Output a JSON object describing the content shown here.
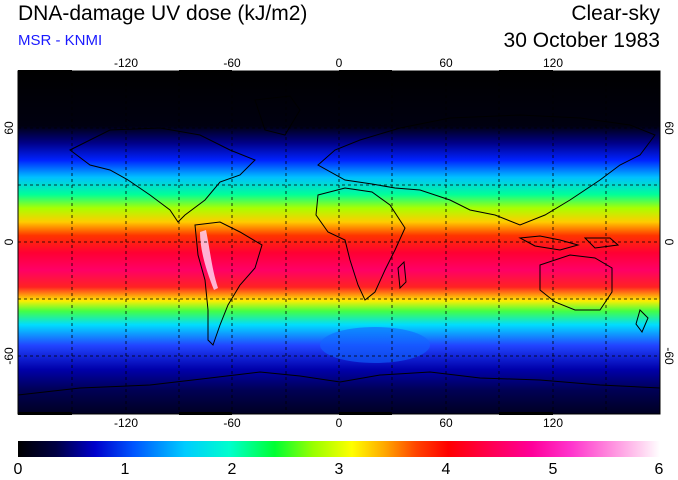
{
  "header": {
    "title": "DNA-damage UV dose (kJ/m2)",
    "subtitle": "MSR - KNMI",
    "condition": "Clear-sky",
    "date": "30 October 1983"
  },
  "colors": {
    "subtitle": "#1a1aff"
  },
  "map": {
    "lon_ticks": [
      "-120",
      "-60",
      "0",
      "60",
      "120"
    ],
    "lat_ticks_left": [
      "60",
      "0",
      "-60"
    ],
    "lat_ticks_right": [
      "60",
      "0",
      "-60"
    ],
    "lon_range": [
      -180,
      180
    ],
    "lat_range": [
      -90,
      90
    ],
    "grid": "dashed, every 30 degrees"
  },
  "colorbar": {
    "labels": [
      "0",
      "1",
      "2",
      "3",
      "4",
      "5",
      "6"
    ],
    "range": [
      0,
      6
    ],
    "colormap": [
      "#000000",
      "#000044",
      "#0000cc",
      "#0055ff",
      "#00ccff",
      "#00ffcc",
      "#00ff33",
      "#99ff00",
      "#ffff00",
      "#ffaa00",
      "#ff4400",
      "#ff0000",
      "#ff0055",
      "#ff0099",
      "#ff33cc",
      "#ff88dd",
      "#ffd0f0",
      "#ffffff"
    ]
  }
}
